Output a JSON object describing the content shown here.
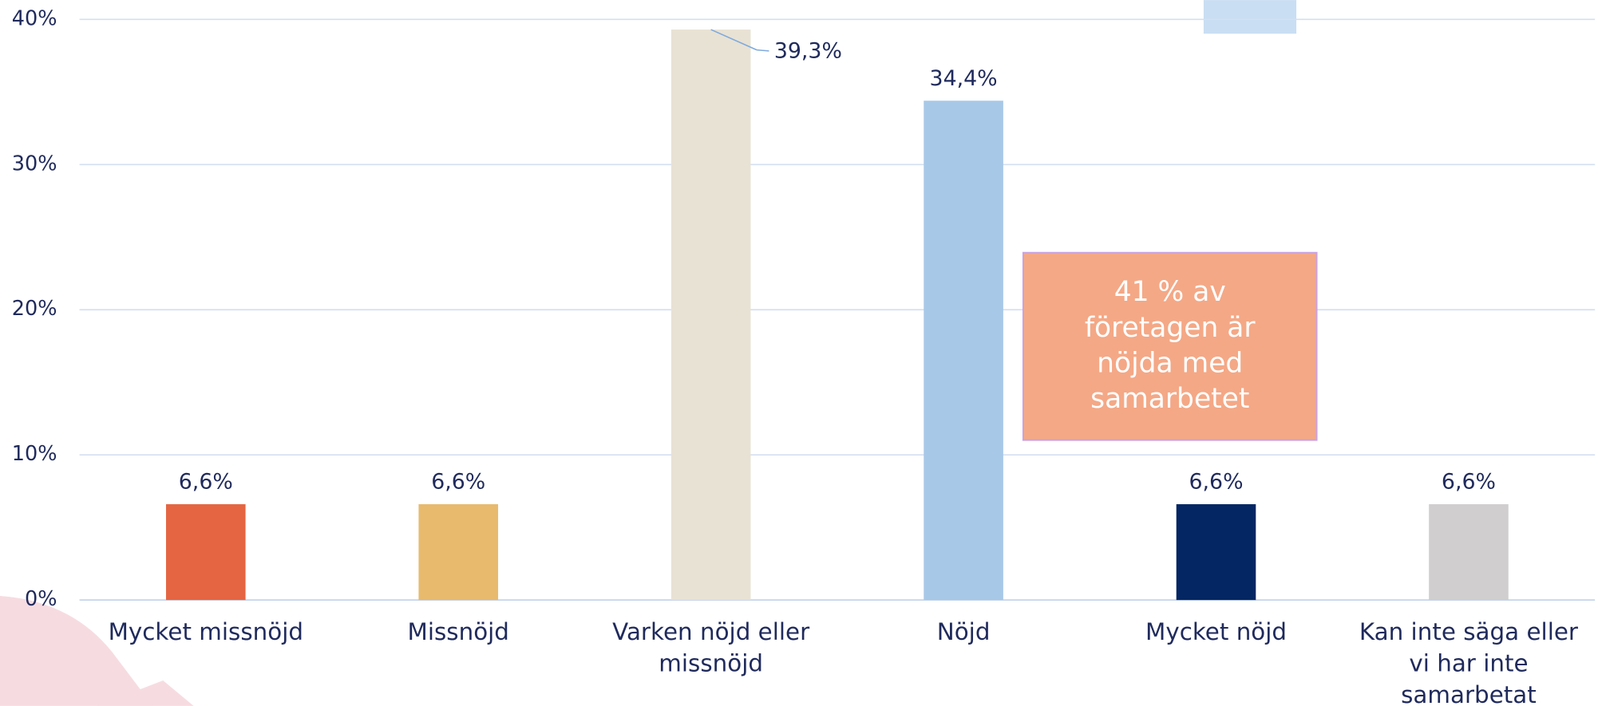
{
  "chart_data": {
    "type": "bar",
    "categories": [
      "Mycket missnöjd",
      "Missnöjd",
      "Varken nöjd eller missnöjd",
      "Nöjd",
      "Mycket nöjd",
      "Kan inte säga eller vi har inte samarbetat"
    ],
    "values": [
      6.6,
      6.6,
      39.3,
      34.4,
      6.6,
      6.6
    ],
    "value_labels": [
      "6,6%",
      "6,6%",
      "39,3%",
      "34,4%",
      "6,6%",
      "6,6%"
    ],
    "colors": [
      "#e56542",
      "#e8ba6e",
      "#e8e2d4",
      "#a8c8e8",
      "#042663",
      "#d0cece"
    ],
    "ylim": [
      0,
      40
    ],
    "yticks": [
      {
        "value": 0,
        "label": "0%"
      },
      {
        "value": 10,
        "label": "10%"
      },
      {
        "value": 20,
        "label": "20%"
      },
      {
        "value": 30,
        "label": "30%"
      },
      {
        "value": 40,
        "label": "40%"
      }
    ],
    "grid": true,
    "annotation": "41 % av företagen är nöjda med samarbetet"
  }
}
